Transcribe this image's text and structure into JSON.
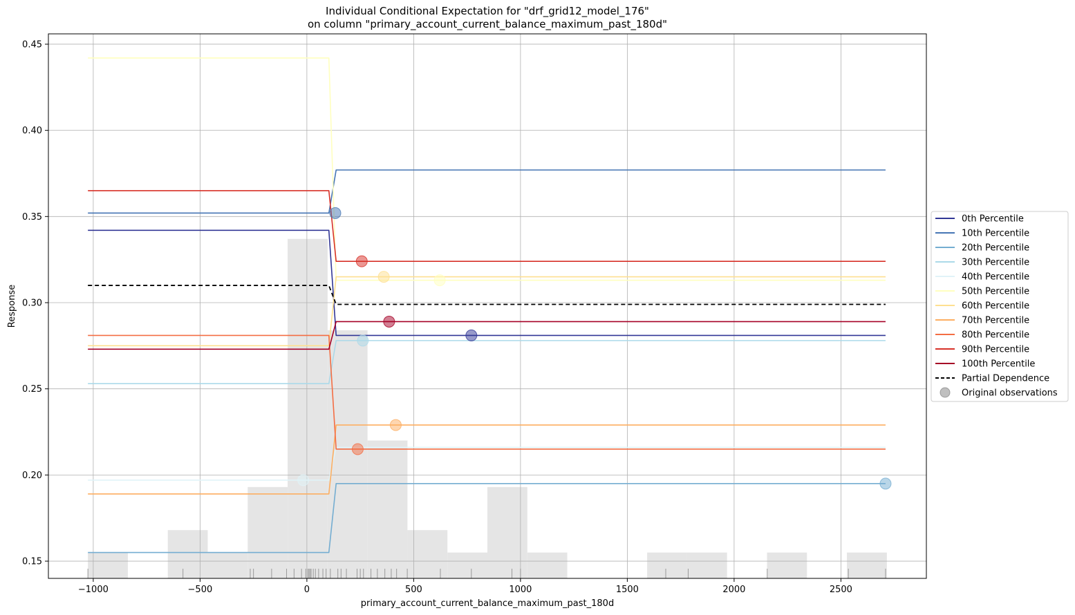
{
  "chart_data": {
    "type": "line",
    "title_line1": "Individual Conditional Expectation for \"drf_grid12_model_176\"",
    "title_line2": "on column \"primary_account_current_balance_maximum_past_180d\"",
    "xlabel": "primary_account_current_balance_maximum_past_180d",
    "ylabel": "Response",
    "xlim": [
      -1210,
      2900
    ],
    "ylim": [
      0.14,
      0.456
    ],
    "x_ticks": [
      -1000,
      -500,
      0,
      500,
      1000,
      1500,
      2000,
      2500
    ],
    "x_tick_labels": [
      "−1000",
      "−500",
      "0",
      "500",
      "1000",
      "1500",
      "2000",
      "2500"
    ],
    "y_ticks": [
      0.15,
      0.2,
      0.25,
      0.3,
      0.35,
      0.4,
      0.45
    ],
    "y_tick_labels": [
      "0.15",
      "0.20",
      "0.25",
      "0.30",
      "0.35",
      "0.40",
      "0.45"
    ],
    "grid": true,
    "legend_position": "right",
    "x": [
      -1025,
      103,
      137,
      2709
    ],
    "series": [
      {
        "name": "0th Percentile",
        "color": "#313695",
        "values": [
          0.342,
          0.342,
          0.281,
          0.281
        ]
      },
      {
        "name": "10th Percentile",
        "color": "#4575b4",
        "values": [
          0.352,
          0.352,
          0.377,
          0.377
        ]
      },
      {
        "name": "20th Percentile",
        "color": "#74add1",
        "values": [
          0.155,
          0.155,
          0.195,
          0.195
        ]
      },
      {
        "name": "30th Percentile",
        "color": "#abd9e9",
        "values": [
          0.253,
          0.253,
          0.278,
          0.278
        ]
      },
      {
        "name": "40th Percentile",
        "color": "#e0f3f8",
        "values": [
          0.197,
          0.197,
          0.216,
          0.216
        ]
      },
      {
        "name": "50th Percentile",
        "color": "#ffffbf",
        "values": [
          0.442,
          0.442,
          0.313,
          0.313
        ]
      },
      {
        "name": "60th Percentile",
        "color": "#fee090",
        "values": [
          0.275,
          0.275,
          0.315,
          0.315
        ]
      },
      {
        "name": "70th Percentile",
        "color": "#fdae61",
        "values": [
          0.189,
          0.189,
          0.229,
          0.229
        ]
      },
      {
        "name": "80th Percentile",
        "color": "#f46d43",
        "values": [
          0.281,
          0.281,
          0.215,
          0.215
        ]
      },
      {
        "name": "90th Percentile",
        "color": "#d73027",
        "values": [
          0.365,
          0.365,
          0.324,
          0.324
        ]
      },
      {
        "name": "100th Percentile",
        "color": "#a50026",
        "values": [
          0.273,
          0.273,
          0.289,
          0.289
        ]
      }
    ],
    "partial_dependence": {
      "name": "Partial Dependence",
      "color": "#000000",
      "values": [
        0.31,
        0.31,
        0.299,
        0.299
      ]
    },
    "observations_legend": "Original observations",
    "observations": [
      {
        "x": 770,
        "y": 0.281,
        "color": "#313695"
      },
      {
        "x": 133,
        "y": 0.352,
        "color": "#4575b4"
      },
      {
        "x": 2709,
        "y": 0.195,
        "color": "#74add1"
      },
      {
        "x": 262,
        "y": 0.278,
        "color": "#abd9e9"
      },
      {
        "x": -17,
        "y": 0.197,
        "color": "#e0f3f8"
      },
      {
        "x": 622,
        "y": 0.313,
        "color": "#ffffbf"
      },
      {
        "x": 360,
        "y": 0.315,
        "color": "#fee090"
      },
      {
        "x": 416,
        "y": 0.229,
        "color": "#fdae61"
      },
      {
        "x": 238,
        "y": 0.215,
        "color": "#f46d43"
      },
      {
        "x": 257,
        "y": 0.324,
        "color": "#d73027"
      },
      {
        "x": 385,
        "y": 0.289,
        "color": "#a50026"
      }
    ],
    "histogram": {
      "color": "#e5e5e5",
      "bins": [
        {
          "x0": -1025,
          "x1": -838,
          "top": 0.155
        },
        {
          "x0": -838,
          "x1": -651,
          "top": 0.14
        },
        {
          "x0": -651,
          "x1": -464,
          "top": 0.168
        },
        {
          "x0": -464,
          "x1": -277,
          "top": 0.155
        },
        {
          "x0": -277,
          "x1": -90,
          "top": 0.193
        },
        {
          "x0": -90,
          "x1": 97,
          "top": 0.337
        },
        {
          "x0": 97,
          "x1": 284,
          "top": 0.284
        },
        {
          "x0": 284,
          "x1": 471,
          "top": 0.22
        },
        {
          "x0": 471,
          "x1": 658,
          "top": 0.168
        },
        {
          "x0": 658,
          "x1": 845,
          "top": 0.155
        },
        {
          "x0": 845,
          "x1": 1032,
          "top": 0.193
        },
        {
          "x0": 1032,
          "x1": 1219,
          "top": 0.155
        },
        {
          "x0": 1219,
          "x1": 1406,
          "top": 0.14
        },
        {
          "x0": 1406,
          "x1": 1593,
          "top": 0.14
        },
        {
          "x0": 1593,
          "x1": 1780,
          "top": 0.155
        },
        {
          "x0": 1780,
          "x1": 1967,
          "top": 0.155
        },
        {
          "x0": 1967,
          "x1": 2154,
          "top": 0.14
        },
        {
          "x0": 2154,
          "x1": 2341,
          "top": 0.155
        },
        {
          "x0": 2341,
          "x1": 2528,
          "top": 0.14
        },
        {
          "x0": 2528,
          "x1": 2715,
          "top": 0.155
        }
      ]
    },
    "rug_color": "#999999",
    "rug_x": [
      -1025,
      -580,
      -265,
      -250,
      -165,
      -95,
      -60,
      -25,
      -5,
      5,
      10,
      15,
      20,
      30,
      40,
      55,
      75,
      90,
      110,
      145,
      160,
      185,
      235,
      250,
      265,
      300,
      330,
      365,
      395,
      420,
      470,
      625,
      770,
      960,
      1000,
      1680,
      1785,
      2155,
      2535,
      2709
    ]
  }
}
